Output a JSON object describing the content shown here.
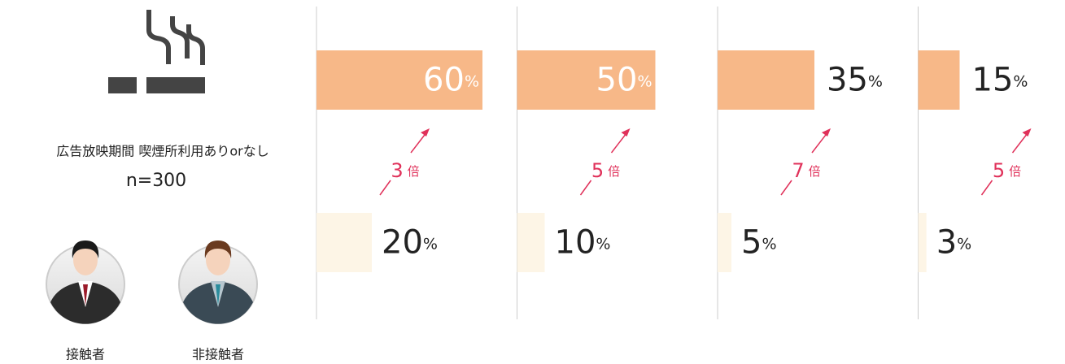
{
  "chart_data": {
    "type": "bar",
    "subtitle": "広告放映期間 喫煙所利用ありorなし",
    "n_label": "n=300",
    "unit": "%",
    "ratio_unit": "倍",
    "xlim": [
      0,
      100
    ],
    "series": [
      {
        "name": "接触者",
        "color": "#f7b888",
        "values": [
          60,
          50,
          35,
          15
        ]
      },
      {
        "name": "非接触者",
        "color": "#fdf5e6",
        "values": [
          20,
          10,
          5,
          3
        ]
      }
    ],
    "ratios": [
      3,
      5,
      7,
      5
    ],
    "ratio_color": "#e0315a"
  }
}
